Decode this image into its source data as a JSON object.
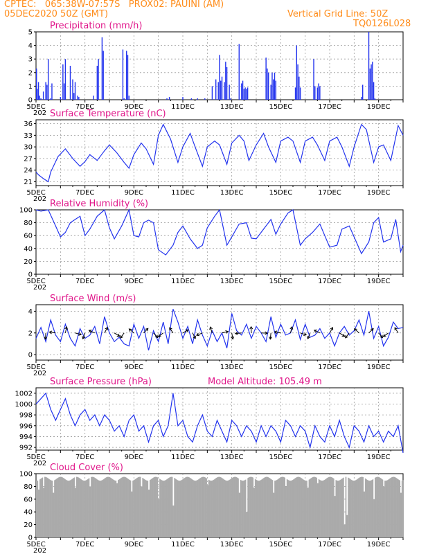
{
  "header": {
    "line1_left": "CPTEC:   065:38W-07:57S   PROX02: PAUINI (AM)",
    "line2_left": "05DEC2020 50Z (GMT)",
    "line2_right": "Vertical Grid Line: 50Z",
    "line3_right": "TQ0126L028"
  },
  "x_tick_labels": [
    "5DEC",
    "7DEC",
    "9DEC",
    "11DEC",
    "13DEC",
    "15DEC",
    "17DEC",
    "19DEC"
  ],
  "year_fragment": "202",
  "colors": {
    "series": "#2233ee",
    "header": "#ff8c1a",
    "title": "#e0168a",
    "cloud": "#aaaaaa"
  },
  "chart_data": [
    {
      "type": "bar",
      "title": "Precipitation (mm/h)",
      "xlabel": "",
      "ylabel": "",
      "ylim": [
        0,
        5
      ],
      "yticks": [
        0,
        1,
        2,
        3,
        4,
        5
      ],
      "xlim_days": [
        5,
        20
      ],
      "x_day": [
        5.02,
        5.05,
        5.1,
        5.15,
        5.2,
        5.3,
        5.4,
        5.45,
        5.5,
        5.6,
        5.65,
        6.0,
        6.1,
        6.15,
        6.2,
        6.4,
        6.5,
        6.55,
        6.6,
        6.7,
        6.75,
        7.35,
        7.5,
        7.55,
        7.7,
        7.75,
        8.55,
        8.6,
        8.7,
        8.75,
        8.8,
        10.35,
        10.45,
        11.0,
        11.35,
        11.6,
        11.9,
        12.2,
        12.35,
        12.45,
        12.5,
        12.55,
        12.6,
        12.7,
        12.75,
        12.8,
        12.9,
        12.95,
        13.3,
        13.4,
        13.45,
        13.5,
        13.55,
        13.6,
        13.65,
        14.4,
        14.45,
        14.5,
        14.6,
        14.65,
        14.7,
        14.75,
        14.8,
        15.6,
        15.65,
        15.7,
        15.75,
        15.8,
        16.35,
        16.4,
        16.5,
        16.55,
        16.6,
        18.3,
        18.35,
        18.6,
        18.65,
        18.7,
        18.75,
        18.8,
        18.85
      ],
      "values": [
        2.3,
        0.8,
        1.3,
        0.3,
        0.1,
        0.6,
        1.3,
        1.1,
        3.0,
        0.1,
        1.2,
        0.2,
        2.6,
        1.2,
        3.0,
        2.5,
        1.5,
        0.5,
        1.3,
        0.3,
        0.2,
        0.3,
        2.5,
        3.0,
        4.6,
        3.6,
        3.7,
        0.1,
        3.6,
        3.3,
        0.3,
        0.1,
        0.2,
        0.2,
        0.1,
        0.1,
        0.1,
        1.0,
        1.5,
        1.3,
        3.3,
        1.4,
        1.7,
        1.3,
        2.8,
        2.4,
        1.1,
        0.1,
        4.1,
        1.2,
        1.4,
        0.8,
        0.9,
        0.8,
        0.9,
        3.1,
        2.3,
        2.0,
        1.1,
        2.0,
        1.5,
        2.0,
        1.4,
        0.9,
        4.0,
        2.6,
        1.7,
        0.9,
        3.0,
        1.0,
        0.9,
        1.2,
        1.0,
        0.2,
        1.1,
        5.0,
        2.3,
        2.6,
        2.8,
        1.3,
        0.1
      ]
    },
    {
      "type": "line",
      "title": "Surface Temperature (nC)",
      "xlabel": "",
      "ylabel": "",
      "ylim": [
        20,
        37
      ],
      "yticks": [
        21,
        24,
        27,
        30,
        33,
        36
      ],
      "xlim_days": [
        5,
        20
      ],
      "series": [
        {
          "x_day": [
            5,
            5.1,
            5.3,
            5.5,
            5.6,
            5.9,
            6.2,
            6.5,
            6.8,
            7.0,
            7.2,
            7.5,
            7.8,
            8.0,
            8.3,
            8.6,
            8.8,
            9.0,
            9.3,
            9.5,
            9.8,
            10.0,
            10.2,
            10.5,
            10.8,
            11.0,
            11.3,
            11.5,
            11.8,
            12.0,
            12.3,
            12.5,
            12.8,
            13.0,
            13.3,
            13.5,
            13.7,
            14.0,
            14.3,
            14.5,
            14.8,
            15.0,
            15.3,
            15.5,
            15.8,
            16.0,
            16.3,
            16.5,
            16.8,
            17.0,
            17.3,
            17.5,
            17.8,
            18.0,
            18.3,
            18.5,
            18.8,
            19.0,
            19.2,
            19.5,
            19.8,
            20.0
          ],
          "values": [
            23.5,
            22.8,
            21.8,
            21.0,
            23.5,
            27.5,
            29.5,
            27.0,
            25.0,
            26.2,
            28.0,
            26.5,
            29.0,
            30.5,
            28.5,
            26.0,
            24.5,
            28.0,
            31.0,
            29.5,
            25.5,
            33.0,
            35.8,
            32.0,
            26.0,
            30.0,
            33.5,
            30.0,
            25.0,
            30.0,
            31.5,
            30.5,
            25.5,
            31.0,
            33.0,
            31.5,
            26.5,
            30.5,
            33.5,
            30.0,
            26.0,
            31.5,
            32.5,
            31.5,
            26.0,
            31.5,
            32.5,
            30.5,
            26.5,
            31.5,
            32.5,
            30.0,
            25.0,
            30.0,
            35.8,
            34.5,
            26.0,
            30.0,
            30.5,
            26.5,
            35.5,
            33.0
          ]
        }
      ]
    },
    {
      "type": "line",
      "title": "Relative Humidity (%)",
      "xlabel": "",
      "ylabel": "",
      "ylim": [
        0,
        100
      ],
      "yticks": [
        0,
        20,
        40,
        60,
        80,
        100
      ],
      "xlim_days": [
        5,
        20
      ],
      "series": [
        {
          "x_day": [
            5,
            5.2,
            5.5,
            5.8,
            6.0,
            6.2,
            6.4,
            6.6,
            6.8,
            7.0,
            7.2,
            7.5,
            7.8,
            8.0,
            8.2,
            8.5,
            8.8,
            9.0,
            9.2,
            9.4,
            9.6,
            9.8,
            10.0,
            10.3,
            10.6,
            10.8,
            11.0,
            11.3,
            11.6,
            11.8,
            12.0,
            12.3,
            12.5,
            12.8,
            13.0,
            13.3,
            13.6,
            13.8,
            14.0,
            14.3,
            14.6,
            14.8,
            15.0,
            15.3,
            15.5,
            15.8,
            16.0,
            16.3,
            16.6,
            16.8,
            17.0,
            17.3,
            17.5,
            17.8,
            18.0,
            18.3,
            18.6,
            18.8,
            19.0,
            19.2,
            19.5,
            19.7,
            19.9,
            20.0
          ],
          "values": [
            100,
            98,
            100,
            75,
            58,
            65,
            80,
            85,
            90,
            60,
            70,
            90,
            100,
            72,
            55,
            75,
            100,
            60,
            58,
            80,
            84,
            80,
            38,
            30,
            45,
            65,
            75,
            55,
            40,
            45,
            72,
            90,
            100,
            45,
            58,
            78,
            80,
            56,
            55,
            70,
            85,
            62,
            78,
            95,
            100,
            45,
            55,
            65,
            78,
            60,
            42,
            45,
            70,
            75,
            58,
            32,
            50,
            80,
            88,
            50,
            55,
            85,
            35,
            45
          ]
        }
      ]
    },
    {
      "type": "line",
      "title": "Surface Wind (m/s)",
      "xlabel": "",
      "ylabel": "",
      "ylim": [
        -0.5,
        4.6
      ],
      "yticks": [
        0,
        2,
        4
      ],
      "xlim_days": [
        5,
        20
      ],
      "series": [
        {
          "x_day": [
            5,
            5.2,
            5.4,
            5.6,
            5.8,
            6.0,
            6.2,
            6.4,
            6.6,
            6.8,
            7.0,
            7.2,
            7.4,
            7.6,
            7.8,
            8.0,
            8.2,
            8.4,
            8.6,
            8.8,
            9.0,
            9.2,
            9.4,
            9.6,
            9.8,
            10.0,
            10.2,
            10.4,
            10.6,
            10.8,
            11.0,
            11.2,
            11.4,
            11.6,
            11.8,
            12.0,
            12.2,
            12.4,
            12.6,
            12.8,
            13.0,
            13.2,
            13.4,
            13.6,
            13.8,
            14.0,
            14.2,
            14.4,
            14.6,
            14.8,
            15.0,
            15.2,
            15.4,
            15.6,
            15.8,
            16.0,
            16.2,
            16.4,
            16.6,
            16.8,
            17.0,
            17.2,
            17.4,
            17.6,
            17.8,
            18.0,
            18.2,
            18.4,
            18.6,
            18.8,
            19.0,
            19.2,
            19.4,
            19.6,
            19.8,
            20.0
          ],
          "values": [
            1.5,
            2.5,
            1.2,
            3.2,
            1.8,
            1.2,
            2.8,
            1.5,
            0.8,
            2.4,
            1.5,
            1.8,
            2.6,
            1.0,
            3.5,
            2.0,
            1.2,
            1.6,
            1.0,
            0.8,
            2.8,
            1.5,
            2.6,
            0.4,
            2.2,
            1.2,
            3.0,
            1.0,
            4.2,
            3.0,
            1.5,
            2.6,
            1.0,
            3.2,
            1.8,
            0.8,
            2.2,
            1.2,
            2.0,
            0.6,
            3.8,
            2.2,
            1.8,
            2.8,
            1.5,
            2.6,
            2.0,
            1.2,
            3.5,
            1.6,
            2.8,
            1.8,
            2.0,
            3.2,
            1.4,
            2.8,
            1.6,
            1.8,
            2.4,
            1.5,
            2.0,
            0.8,
            2.0,
            2.6,
            1.8,
            2.2,
            3.2,
            1.8,
            4.0,
            1.5,
            2.6,
            0.8,
            1.6,
            3.0,
            2.4,
            2.5
          ]
        }
      ]
    },
    {
      "type": "line",
      "title": "Surface Pressure (hPa)",
      "annotation": "Model Altitude: 105.49  m",
      "xlabel": "",
      "ylabel": "",
      "ylim": [
        991.5,
        1003
      ],
      "yticks": [
        992,
        994,
        996,
        998,
        1000,
        1002
      ],
      "xlim_days": [
        5,
        20
      ],
      "series": [
        {
          "x_day": [
            5,
            5.2,
            5.4,
            5.6,
            5.8,
            6.0,
            6.2,
            6.4,
            6.6,
            6.8,
            7.0,
            7.2,
            7.4,
            7.6,
            7.8,
            8.0,
            8.2,
            8.4,
            8.6,
            8.8,
            9.0,
            9.2,
            9.4,
            9.6,
            9.8,
            10.0,
            10.2,
            10.4,
            10.6,
            10.8,
            11.0,
            11.2,
            11.4,
            11.6,
            11.8,
            12.0,
            12.2,
            12.4,
            12.6,
            12.8,
            13.0,
            13.2,
            13.4,
            13.6,
            13.8,
            14.0,
            14.2,
            14.4,
            14.6,
            14.8,
            15.0,
            15.2,
            15.4,
            15.6,
            15.8,
            16.0,
            16.2,
            16.4,
            16.6,
            16.8,
            17.0,
            17.2,
            17.4,
            17.6,
            17.8,
            18.0,
            18.2,
            18.4,
            18.6,
            18.8,
            19.0,
            19.2,
            19.4,
            19.6,
            19.8,
            20.0
          ],
          "values": [
            1000,
            1001,
            1002,
            999,
            997,
            999,
            1001,
            998,
            996,
            998,
            999,
            997,
            998,
            996,
            998,
            997,
            995,
            996,
            994,
            997,
            998,
            995,
            996,
            993,
            996,
            997,
            994,
            996,
            1002,
            996,
            997,
            994,
            993,
            996,
            998,
            995,
            994,
            997,
            995,
            993,
            997,
            996,
            994,
            996,
            995,
            993,
            996,
            994,
            996,
            995,
            993,
            997,
            996,
            994,
            996,
            995,
            992,
            996,
            994,
            993,
            996,
            994,
            997,
            994,
            992,
            996,
            995,
            993,
            996,
            994,
            995,
            993,
            995,
            994,
            996,
            991
          ]
        }
      ]
    },
    {
      "type": "bar",
      "title": "Cloud Cover (%)",
      "xlabel": "",
      "ylabel": "",
      "ylim": [
        0,
        100
      ],
      "yticks": [
        0,
        20,
        40,
        60,
        80,
        100
      ],
      "xlim_days": [
        5,
        20
      ],
      "baseline_percent": 92,
      "dips_day": [
        5.1,
        5.3,
        5.7,
        6.6,
        7.2,
        8.3,
        8.9,
        9.3,
        9.6,
        10.0,
        10.6,
        12.0,
        13.3,
        13.6,
        13.9,
        14.7,
        15.2,
        16.1,
        16.5,
        17.2,
        17.6,
        17.7,
        18.4,
        18.8,
        19.2,
        19.9
      ],
      "dips_percent": [
        75,
        78,
        70,
        78,
        80,
        85,
        72,
        80,
        75,
        60,
        50,
        82,
        70,
        40,
        78,
        70,
        80,
        78,
        85,
        65,
        20,
        35,
        72,
        60,
        80,
        70
      ]
    }
  ]
}
